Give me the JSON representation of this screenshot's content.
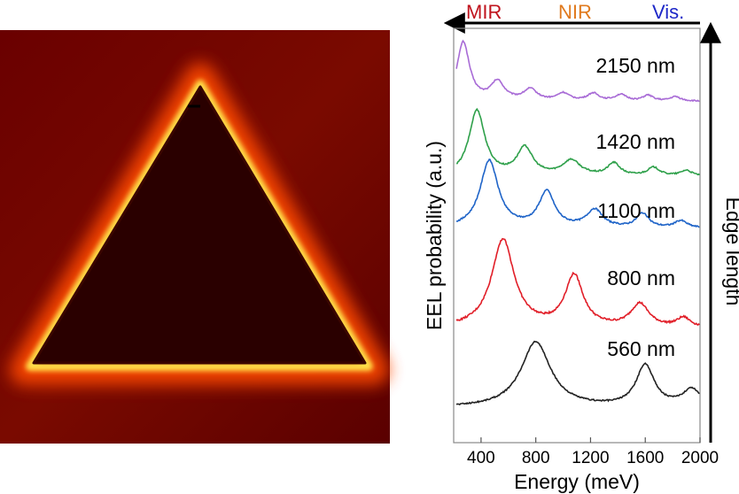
{
  "chart_data": {
    "type": "line",
    "title": "",
    "xlabel": "Energy (meV)",
    "ylabel": "EEL probability (a.u.)",
    "xlim": [
      200,
      2000
    ],
    "x_ticks": [
      "400",
      "800",
      "1200",
      "1600",
      "2000"
    ],
    "y_ticks": [],
    "grid": false,
    "legend": "none",
    "spectral_regions": [
      {
        "label": "MIR",
        "color": "#c0141e"
      },
      {
        "label": "NIR",
        "color": "#e07a1e"
      },
      {
        "label": "Vis.",
        "color": "#1e28c8"
      }
    ],
    "edge_axis_label": "Edge length",
    "series": [
      {
        "label": "2150 nm",
        "color": "#a86bd6",
        "peaks": [
          {
            "x": 270,
            "h": 0.95,
            "w": 55
          },
          {
            "x": 520,
            "h": 0.3,
            "w": 60
          },
          {
            "x": 760,
            "h": 0.18,
            "w": 60
          },
          {
            "x": 1000,
            "h": 0.12,
            "w": 55
          },
          {
            "x": 1220,
            "h": 0.12,
            "w": 50
          },
          {
            "x": 1420,
            "h": 0.1,
            "w": 50
          },
          {
            "x": 1620,
            "h": 0.09,
            "w": 45
          },
          {
            "x": 1820,
            "h": 0.07,
            "w": 45
          }
        ],
        "baseline": 0.05
      },
      {
        "label": "1420 nm",
        "color": "#2ea04a",
        "peaks": [
          {
            "x": 370,
            "h": 0.95,
            "w": 70
          },
          {
            "x": 720,
            "h": 0.4,
            "w": 70
          },
          {
            "x": 1060,
            "h": 0.22,
            "w": 80
          },
          {
            "x": 1370,
            "h": 0.18,
            "w": 55
          },
          {
            "x": 1660,
            "h": 0.12,
            "w": 55
          },
          {
            "x": 1900,
            "h": 0.08,
            "w": 50
          }
        ],
        "baseline": 0.06
      },
      {
        "label": "1100 nm",
        "color": "#1f64c8",
        "peaks": [
          {
            "x": 460,
            "h": 0.95,
            "w": 80
          },
          {
            "x": 880,
            "h": 0.5,
            "w": 70
          },
          {
            "x": 1230,
            "h": 0.25,
            "w": 70
          },
          {
            "x": 1580,
            "h": 0.2,
            "w": 55
          },
          {
            "x": 1860,
            "h": 0.1,
            "w": 55
          }
        ],
        "baseline": 0.05
      },
      {
        "label": "800 nm",
        "color": "#e11e28",
        "peaks": [
          {
            "x": 560,
            "h": 0.95,
            "w": 100
          },
          {
            "x": 1080,
            "h": 0.55,
            "w": 80
          },
          {
            "x": 1560,
            "h": 0.25,
            "w": 80
          },
          {
            "x": 1880,
            "h": 0.1,
            "w": 60
          }
        ],
        "baseline": 0.05
      },
      {
        "label": "560 nm",
        "color": "#222222",
        "peaks": [
          {
            "x": 800,
            "h": 0.95,
            "w": 130
          },
          {
            "x": 1600,
            "h": 0.6,
            "w": 80
          },
          {
            "x": 1940,
            "h": 0.25,
            "w": 80
          }
        ],
        "baseline": 0.02
      }
    ]
  }
}
